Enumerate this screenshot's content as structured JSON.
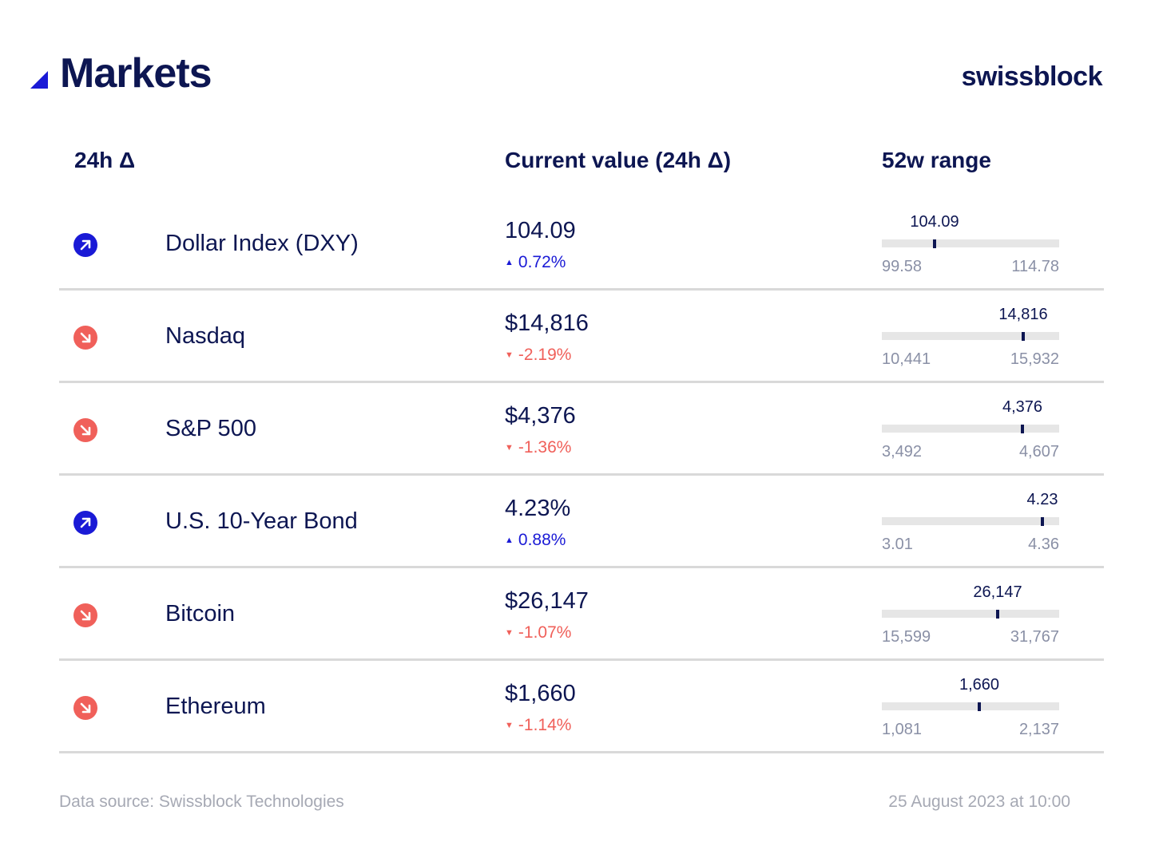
{
  "header": {
    "title": "Markets",
    "brand": "swissblock",
    "accent_color": "#1a1ad6",
    "text_color": "#0d1652"
  },
  "columns": {
    "delta": "24h Δ",
    "current": "Current value (24h Δ)",
    "range": "52w range"
  },
  "status_colors": {
    "up": "#1a1ad6",
    "down": "#f0605a"
  },
  "rows": [
    {
      "name": "Dollar Index (DXY)",
      "direction": "up",
      "icon": "arrow-up-right-icon",
      "value": "104.09",
      "change": "0.72%",
      "range": {
        "current_label": "104.09",
        "min_label": "99.58",
        "max_label": "114.78",
        "current": 104.09,
        "min": 99.58,
        "max": 114.78
      }
    },
    {
      "name": "Nasdaq",
      "direction": "down",
      "icon": "arrow-down-right-icon",
      "value": "$14,816",
      "change": "-2.19%",
      "range": {
        "current_label": "14,816",
        "min_label": "10,441",
        "max_label": "15,932",
        "current": 14816,
        "min": 10441,
        "max": 15932
      }
    },
    {
      "name": "S&P 500",
      "direction": "down",
      "icon": "arrow-down-right-icon",
      "value": "$4,376",
      "change": "-1.36%",
      "range": {
        "current_label": "4,376",
        "min_label": "3,492",
        "max_label": "4,607",
        "current": 4376,
        "min": 3492,
        "max": 4607
      }
    },
    {
      "name": "U.S. 10-Year Bond",
      "direction": "up",
      "icon": "arrow-up-right-icon",
      "value": "4.23%",
      "change": "0.88%",
      "range": {
        "current_label": "4.23",
        "min_label": "3.01",
        "max_label": "4.36",
        "current": 4.23,
        "min": 3.01,
        "max": 4.36
      }
    },
    {
      "name": "Bitcoin",
      "direction": "down",
      "icon": "arrow-down-right-icon",
      "value": "$26,147",
      "change": "-1.07%",
      "range": {
        "current_label": "26,147",
        "min_label": "15,599",
        "max_label": "31,767",
        "current": 26147,
        "min": 15599,
        "max": 31767
      }
    },
    {
      "name": "Ethereum",
      "direction": "down",
      "icon": "arrow-down-right-icon",
      "value": "$1,660",
      "change": "-1.14%",
      "range": {
        "current_label": "1,660",
        "min_label": "1,081",
        "max_label": "2,137",
        "current": 1660,
        "min": 1081,
        "max": 2137
      }
    }
  ],
  "footer": {
    "source": "Data source: Swissblock Technologies",
    "timestamp": "25 August 2023 at 10:00"
  }
}
